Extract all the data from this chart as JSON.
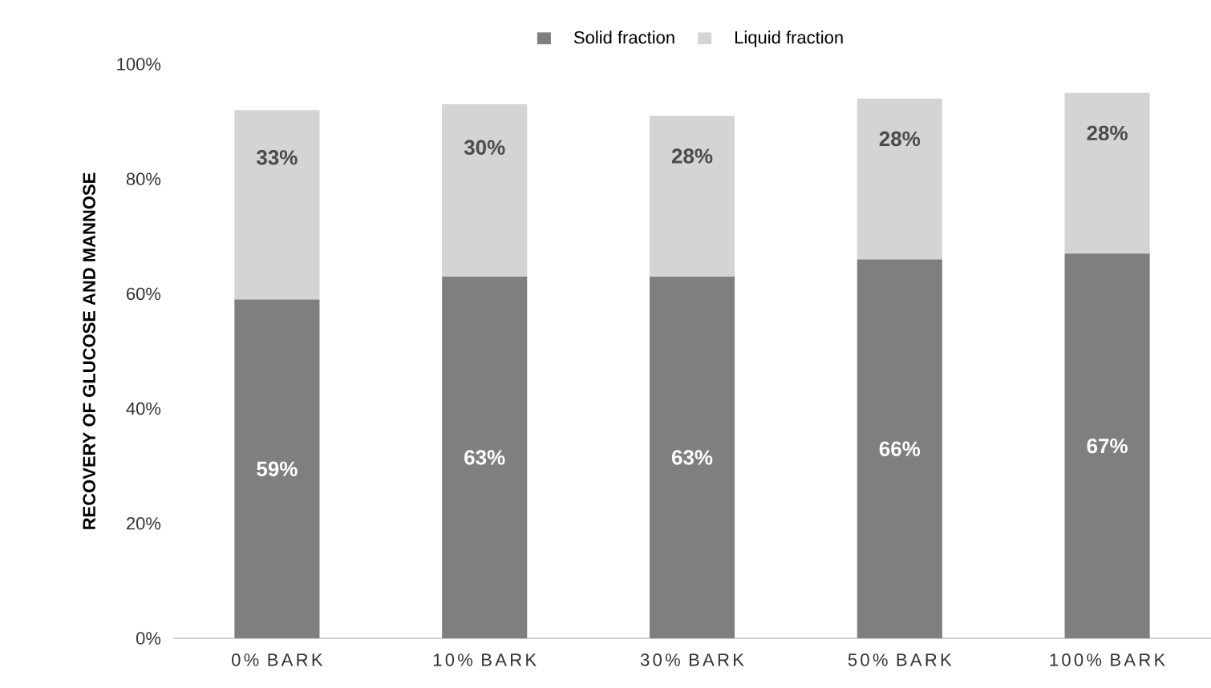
{
  "chart_data": {
    "type": "bar",
    "stacked": true,
    "ylabel": "RECOVERY OF GLUCOSE AND MANNOSE",
    "categories": [
      "0% BARK",
      "10% BARK",
      "30% BARK",
      "50% BARK",
      "100% BARK"
    ],
    "series": [
      {
        "name": "Solid fraction",
        "color": "#7f7f80",
        "values": [
          59,
          63,
          63,
          66,
          67
        ],
        "value_labels": [
          "59%",
          "63%",
          "63%",
          "66%",
          "67%"
        ]
      },
      {
        "name": "Liquid fraction",
        "color": "#d4d4d5",
        "values": [
          33,
          30,
          28,
          28,
          28
        ],
        "value_labels": [
          "33%",
          "30%",
          "28%",
          "28%",
          "28%"
        ]
      }
    ],
    "ylim": [
      0,
      100
    ],
    "yticks": [
      {
        "value": 0,
        "label": "0%"
      },
      {
        "value": 20,
        "label": "20%"
      },
      {
        "value": 40,
        "label": "40%"
      },
      {
        "value": 60,
        "label": "60%"
      },
      {
        "value": 80,
        "label": "80%"
      },
      {
        "value": 100,
        "label": "100%"
      }
    ],
    "legend": "top",
    "grid": false
  }
}
